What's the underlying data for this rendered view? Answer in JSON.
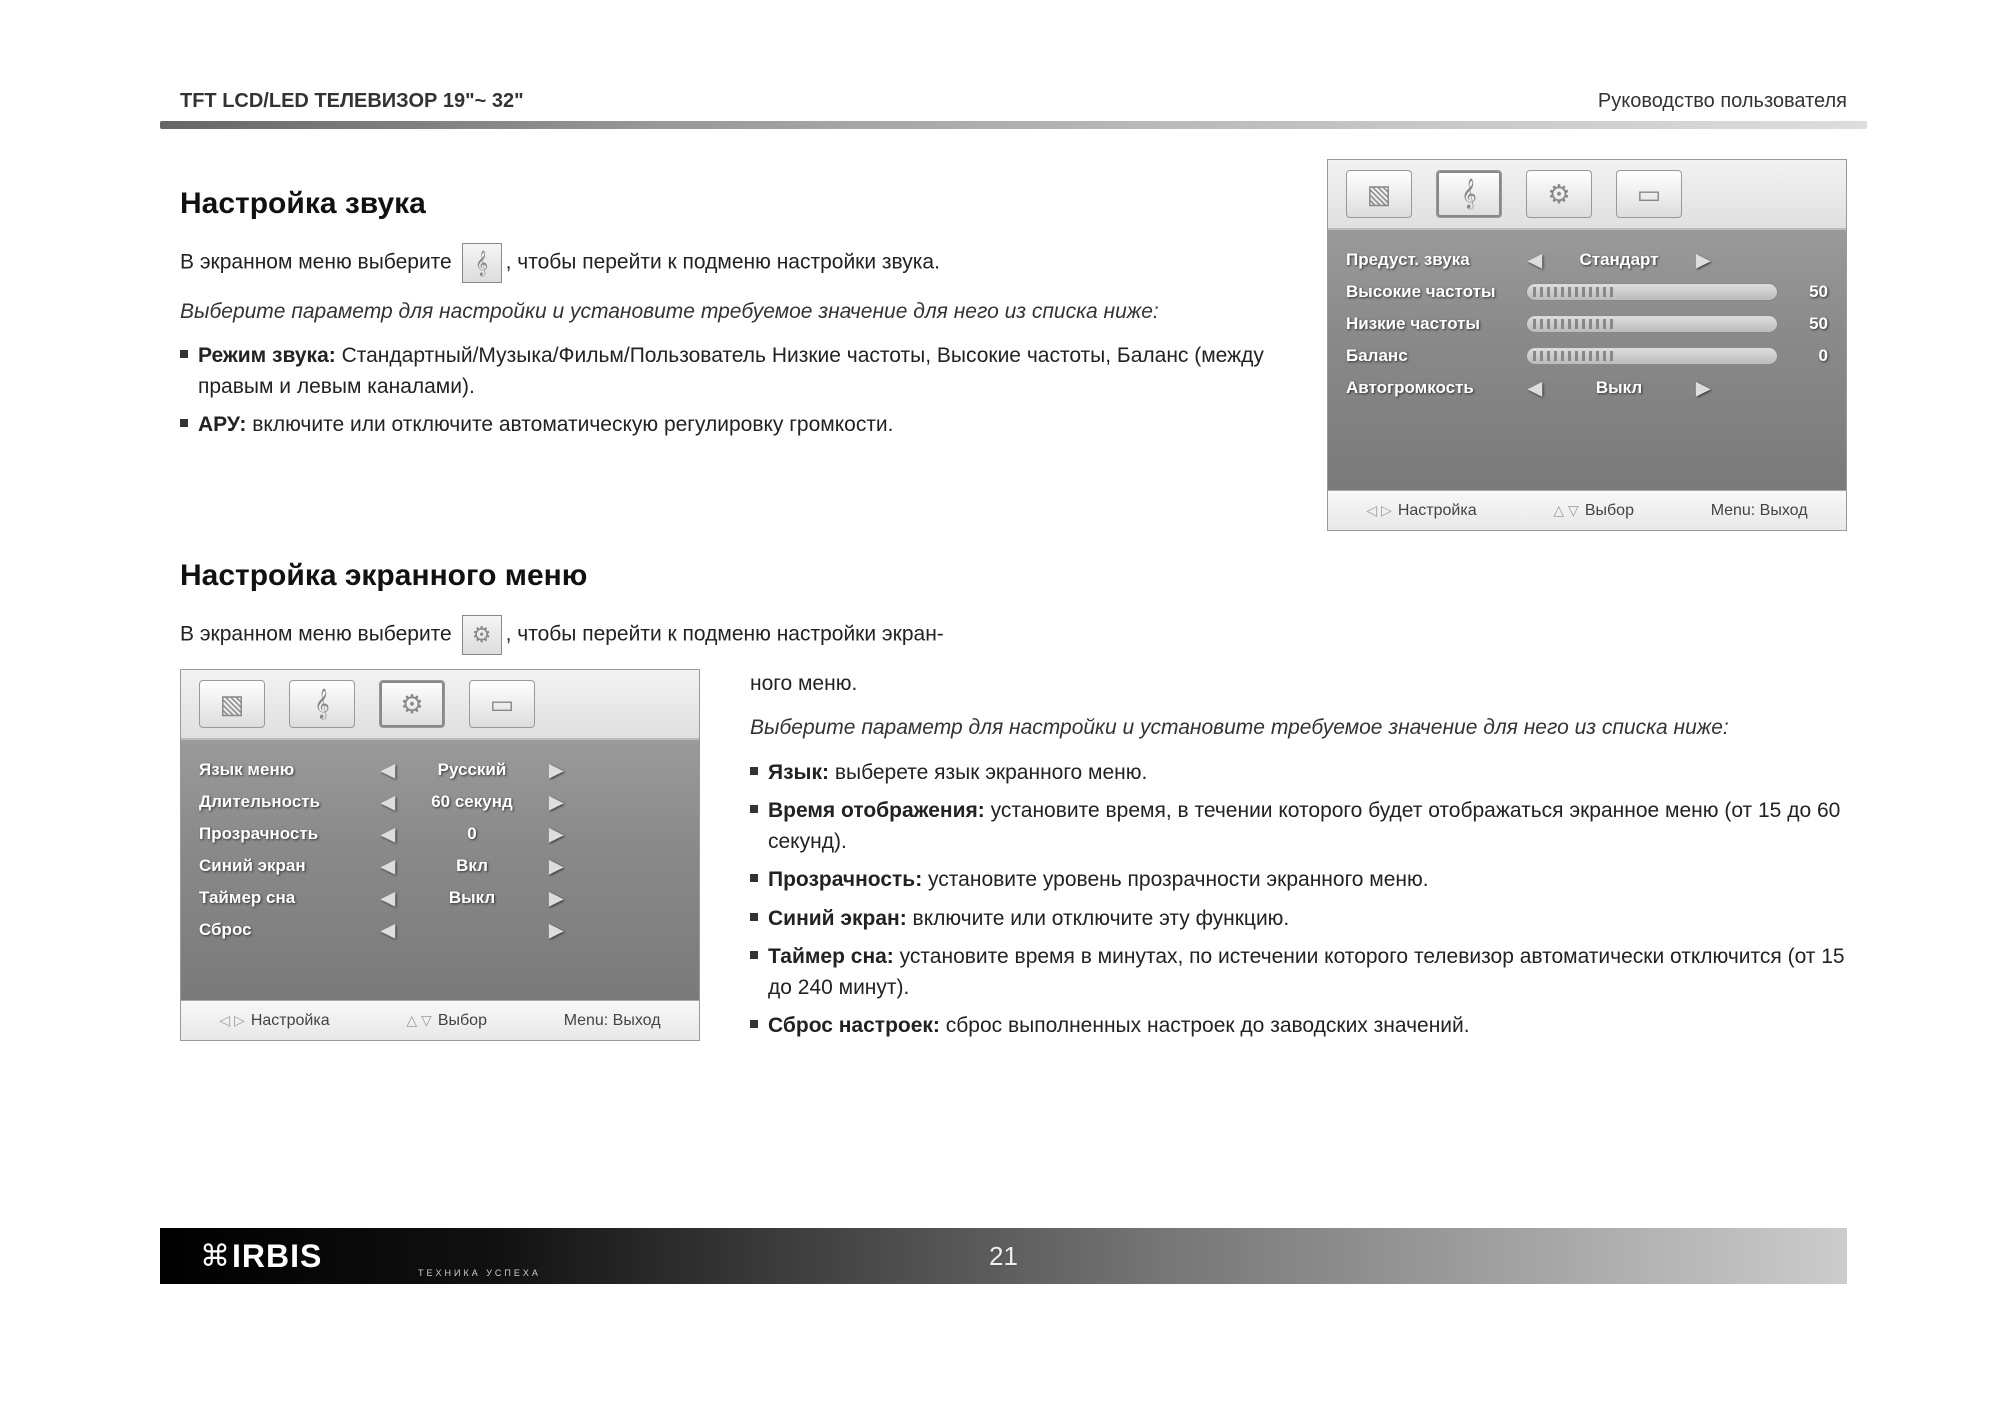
{
  "header": {
    "left": "TFT LCD/LED ТЕЛЕВИЗОР 19\"~ 32\"",
    "right": "Руководство пользователя"
  },
  "sound": {
    "heading": "Настройка звука",
    "intro_before": "В экранном меню выберите ",
    "intro_after": ", чтобы перейти к подменю настройки звука.",
    "select_prompt": "Выберите параметр для настройки и установите требуемое значение для него из списка ниже:",
    "mode_label": "Режим звука:",
    "mode_text": " Стандартный/Музыка/Фильм/Пользователь Низкие частоты, Высокие частоты, Баланс (между правым и левым каналами).",
    "agc_label": "АРУ:",
    "agc_text": " включите или отключите автоматическую регулировку громкости."
  },
  "osd_sound": {
    "rows": [
      {
        "label": "Предуст. звука",
        "type": "select",
        "value": "Стандарт"
      },
      {
        "label": "Высокие частоты",
        "type": "slider",
        "value": "50"
      },
      {
        "label": "Низкие частоты",
        "type": "slider",
        "value": "50"
      },
      {
        "label": "Баланс",
        "type": "slider",
        "value": "0"
      },
      {
        "label": "Автогромкость",
        "type": "select",
        "value": "Выкл"
      }
    ],
    "footer": {
      "adjust": "Настройка",
      "select": "Выбор",
      "exit": "Menu: Выход"
    }
  },
  "menu": {
    "heading": "Настройка экранного меню",
    "intro_before": "В экранном меню выберите ",
    "intro_after": ", чтобы перейти к подменю настройки экран-",
    "intro_cont": "ного меню.",
    "select_prompt": "Выберите параметр для настройки и установите требуемое значение для него из списка ниже:",
    "items": [
      {
        "label": "Язык:",
        "text": " выберете язык экранного меню."
      },
      {
        "label": "Время отображения:",
        "text": " установите время, в течении которого будет отображаться экранное меню (от 15 до 60 секунд)."
      },
      {
        "label": "Прозрачность:",
        "text": " установите уровень прозрачности экранного меню."
      },
      {
        "label": "Синий экран:",
        "text": " включите или отключите эту функцию."
      },
      {
        "label": "Таймер сна:",
        "text": " установите время в минутах, по истечении которого телевизор автоматически отключится (от 15 до 240 минут)."
      },
      {
        "label": "Сброс настроек:",
        "text": " сброс выполненных настроек до заводских значений."
      }
    ]
  },
  "osd_menu": {
    "rows": [
      {
        "label": "Язык меню",
        "value": "Русский"
      },
      {
        "label": "Длительность",
        "value": "60 секунд"
      },
      {
        "label": "Прозрачность",
        "value": "0"
      },
      {
        "label": "Синий экран",
        "value": "Вкл"
      },
      {
        "label": "Таймер сна",
        "value": "Выкл"
      },
      {
        "label": "Сброс",
        "value": ""
      }
    ],
    "footer": {
      "adjust": "Настройка",
      "select": "Выбор",
      "exit": "Menu: Выход"
    }
  },
  "icons": {
    "picture": "▧",
    "sound": "𝄞",
    "setup": "⚙",
    "channel": "▭"
  },
  "footer": {
    "brand": "IRBIS",
    "tagline": "ТЕХНИКА УСПЕХА",
    "page": "21"
  },
  "colors": {
    "osd_body": "#8a8a8a",
    "osd_text": "#ffffff",
    "header_gradient_start": "#666666",
    "header_gradient_end": "#dddddd",
    "footer_start": "#000000",
    "footer_end": "#cccccc"
  }
}
